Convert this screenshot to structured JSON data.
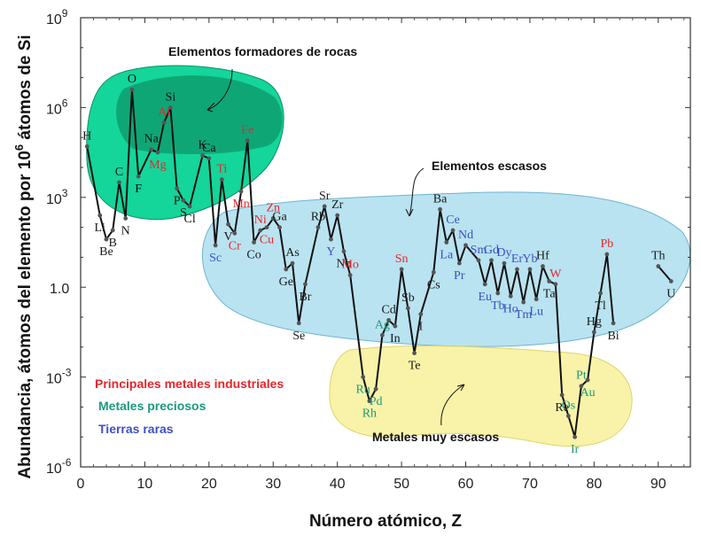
{
  "chart_data": {
    "type": "line",
    "xlabel": "Número atómico, Z",
    "ylabel_main": "Abundancia, átomos del elemento por 10",
    "ylabel_sup": "6",
    "ylabel_tail": " átomos de Si",
    "xlim": [
      0,
      95
    ],
    "ylim_log10": [
      -6,
      9
    ],
    "x_ticks": [
      {
        "value": 0,
        "label": "0"
      },
      {
        "value": 10,
        "label": "10"
      },
      {
        "value": 20,
        "label": "20"
      },
      {
        "value": 30,
        "label": "30"
      },
      {
        "value": 40,
        "label": "40"
      },
      {
        "value": 50,
        "label": "50"
      },
      {
        "value": 60,
        "label": "60"
      },
      {
        "value": 70,
        "label": "70"
      },
      {
        "value": 80,
        "label": "80"
      },
      {
        "value": 90,
        "label": "90"
      }
    ],
    "y_ticks": [
      {
        "exp": 9,
        "base": "10",
        "sup": "9"
      },
      {
        "exp": 6,
        "base": "10",
        "sup": "6"
      },
      {
        "exp": 3,
        "base": "10",
        "sup": "3"
      },
      {
        "exp": 0,
        "base": "10",
        "sup": "0",
        "plain": "1.0"
      },
      {
        "exp": -3,
        "base": "10",
        "sup": "-3"
      },
      {
        "exp": -6,
        "base": "10",
        "sup": "-6"
      }
    ],
    "series": [
      {
        "points": [
          {
            "z": 1,
            "log": 4.7,
            "symbol": "H",
            "group": "rock"
          },
          {
            "z": 3,
            "log": 2.4,
            "symbol": "Li",
            "group": "other"
          },
          {
            "z": 4,
            "log": 1.6,
            "symbol": "Be",
            "group": "other"
          },
          {
            "z": 5,
            "log": 1.9,
            "symbol": "B",
            "group": "other"
          },
          {
            "z": 6,
            "log": 3.5,
            "symbol": "C",
            "group": "rock"
          },
          {
            "z": 7,
            "log": 2.3,
            "symbol": "N",
            "group": "rock"
          },
          {
            "z": 8,
            "log": 6.6,
            "symbol": "O",
            "group": "rock"
          },
          {
            "z": 9,
            "log": 3.7,
            "symbol": "F",
            "group": "rock"
          },
          {
            "z": 11,
            "log": 4.6,
            "symbol": "Na",
            "group": "rock"
          },
          {
            "z": 12,
            "log": 4.5,
            "symbol": "Mg",
            "group": "industrial"
          },
          {
            "z": 13,
            "log": 5.5,
            "symbol": "Al",
            "group": "industrial"
          },
          {
            "z": 14,
            "log": 6.0,
            "symbol": "Si",
            "group": "rock"
          },
          {
            "z": 15,
            "log": 3.3,
            "symbol": "P",
            "group": "rock"
          },
          {
            "z": 16,
            "log": 2.9,
            "symbol": "S",
            "group": "rock"
          },
          {
            "z": 17,
            "log": 2.7,
            "symbol": "Cl",
            "group": "rock"
          },
          {
            "z": 19,
            "log": 4.4,
            "symbol": "K",
            "group": "rock"
          },
          {
            "z": 20,
            "log": 4.3,
            "symbol": "Ca",
            "group": "rock"
          },
          {
            "z": 21,
            "log": 1.4,
            "symbol": "Sc",
            "group": "rare"
          },
          {
            "z": 22,
            "log": 3.6,
            "symbol": "Ti",
            "group": "industrial"
          },
          {
            "z": 23,
            "log": 2.1,
            "symbol": "V",
            "group": "other"
          },
          {
            "z": 24,
            "log": 1.8,
            "symbol": "Cr",
            "group": "industrial"
          },
          {
            "z": 25,
            "log": 3.2,
            "symbol": "Mn",
            "group": "industrial"
          },
          {
            "z": 26,
            "log": 4.9,
            "symbol": "Fe",
            "group": "industrial"
          },
          {
            "z": 27,
            "log": 1.5,
            "symbol": "Co",
            "group": "other"
          },
          {
            "z": 28,
            "log": 1.9,
            "symbol": "Ni",
            "group": "industrial"
          },
          {
            "z": 29,
            "log": 2.0,
            "symbol": "Cu",
            "group": "industrial"
          },
          {
            "z": 30,
            "log": 2.3,
            "symbol": "Zn",
            "group": "industrial"
          },
          {
            "z": 31,
            "log": 2.0,
            "symbol": "Ga",
            "group": "other"
          },
          {
            "z": 32,
            "log": 0.6,
            "symbol": "Ge",
            "group": "other"
          },
          {
            "z": 33,
            "log": 0.8,
            "symbol": "As",
            "group": "other"
          },
          {
            "z": 34,
            "log": -1.2,
            "symbol": "Se",
            "group": "other"
          },
          {
            "z": 35,
            "log": 0.1,
            "symbol": "Br",
            "group": "other"
          },
          {
            "z": 37,
            "log": 2.0,
            "symbol": "Rb",
            "group": "other"
          },
          {
            "z": 38,
            "log": 2.7,
            "symbol": "Sr",
            "group": "other"
          },
          {
            "z": 39,
            "log": 1.6,
            "symbol": "Y",
            "group": "rare"
          },
          {
            "z": 40,
            "log": 2.4,
            "symbol": "Zr",
            "group": "other"
          },
          {
            "z": 41,
            "log": 1.2,
            "symbol": "Nb",
            "group": "other"
          },
          {
            "z": 42,
            "log": 0.4,
            "symbol": "Mo",
            "group": "industrial"
          },
          {
            "z": 44,
            "log": -3.0,
            "symbol": "Ru",
            "group": "precious"
          },
          {
            "z": 45,
            "log": -3.8,
            "symbol": "Rh",
            "group": "precious"
          },
          {
            "z": 46,
            "log": -3.4,
            "symbol": "Pd",
            "group": "precious"
          },
          {
            "z": 47,
            "log": -1.6,
            "symbol": "Ag",
            "group": "precious"
          },
          {
            "z": 48,
            "log": -1.1,
            "symbol": "Cd",
            "group": "other"
          },
          {
            "z": 49,
            "log": -1.3,
            "symbol": "In",
            "group": "other"
          },
          {
            "z": 50,
            "log": 0.6,
            "symbol": "Sn",
            "group": "industrial"
          },
          {
            "z": 51,
            "log": -0.7,
            "symbol": "Sb",
            "group": "other"
          },
          {
            "z": 52,
            "log": -2.2,
            "symbol": "Te",
            "group": "other"
          },
          {
            "z": 53,
            "log": -0.9,
            "symbol": "I",
            "group": "other"
          },
          {
            "z": 55,
            "log": 0.5,
            "symbol": "Cs",
            "group": "other"
          },
          {
            "z": 56,
            "log": 2.6,
            "symbol": "Ba",
            "group": "other"
          },
          {
            "z": 57,
            "log": 1.5,
            "symbol": "La",
            "group": "rare"
          },
          {
            "z": 58,
            "log": 1.9,
            "symbol": "Ce",
            "group": "rare"
          },
          {
            "z": 59,
            "log": 0.8,
            "symbol": "Pr",
            "group": "rare"
          },
          {
            "z": 60,
            "log": 1.4,
            "symbol": "Nd",
            "group": "rare"
          },
          {
            "z": 62,
            "log": 0.9,
            "symbol": "Sm",
            "group": "rare"
          },
          {
            "z": 63,
            "log": 0.1,
            "symbol": "Eu",
            "group": "rare"
          },
          {
            "z": 64,
            "log": 0.9,
            "symbol": "Gd",
            "group": "rare"
          },
          {
            "z": 65,
            "log": -0.2,
            "symbol": "Tb",
            "group": "rare"
          },
          {
            "z": 66,
            "log": 0.8,
            "symbol": "Dy",
            "group": "rare"
          },
          {
            "z": 67,
            "log": -0.3,
            "symbol": "Ho",
            "group": "rare"
          },
          {
            "z": 68,
            "log": 0.6,
            "symbol": "Er",
            "group": "rare"
          },
          {
            "z": 69,
            "log": -0.5,
            "symbol": "Tm",
            "group": "rare"
          },
          {
            "z": 70,
            "log": 0.6,
            "symbol": "Yb",
            "group": "rare"
          },
          {
            "z": 71,
            "log": -0.4,
            "symbol": "Lu",
            "group": "rare"
          },
          {
            "z": 72,
            "log": 0.7,
            "symbol": "Hf",
            "group": "other"
          },
          {
            "z": 73,
            "log": 0.2,
            "symbol": "Ta",
            "group": "other"
          },
          {
            "z": 74,
            "log": 0.1,
            "symbol": "W",
            "group": "industrial"
          },
          {
            "z": 75,
            "log": -3.6,
            "symbol": "Re",
            "group": "other"
          },
          {
            "z": 76,
            "log": -4.3,
            "symbol": "Os",
            "group": "precious"
          },
          {
            "z": 77,
            "log": -5.0,
            "symbol": "Ir",
            "group": "precious"
          },
          {
            "z": 78,
            "log": -3.3,
            "symbol": "Pt",
            "group": "precious"
          },
          {
            "z": 79,
            "log": -3.1,
            "symbol": "Au",
            "group": "precious"
          },
          {
            "z": 80,
            "log": -1.5,
            "symbol": "Hg",
            "group": "other"
          },
          {
            "z": 81,
            "log": -0.2,
            "symbol": "Tl",
            "group": "other"
          },
          {
            "z": 82,
            "log": 1.1,
            "symbol": "Pb",
            "group": "industrial"
          },
          {
            "z": 83,
            "log": -1.2,
            "symbol": "Bi",
            "group": "other"
          }
        ]
      },
      {
        "points": [
          {
            "z": 90,
            "log": 0.7,
            "symbol": "Th",
            "group": "other"
          },
          {
            "z": 92,
            "log": 0.2,
            "symbol": "U",
            "group": "other"
          }
        ]
      }
    ],
    "regions": [
      {
        "label": "Elementos formadores de rocas"
      },
      {
        "label": "Elementos escasos"
      },
      {
        "label": "Metales muy escasos"
      }
    ],
    "legend": [
      {
        "label": "Principales metales industriales",
        "color": "#e8262b"
      },
      {
        "label": "Metales preciosos",
        "color": "#1a9a80"
      },
      {
        "label": "Tierras raras",
        "color": "#3d4fc4"
      }
    ],
    "colors": {
      "industrial": "#e8262b",
      "precious": "#1a9a80",
      "rare": "#3d4fc4",
      "other": "#1a1a1a",
      "rock": "#111111",
      "rock_fill": "#14d59a",
      "rock_fill_dark": "#0e9e70",
      "scarce_fill": "#b9e3f0",
      "very_scarce_fill": "#f8f3a8"
    }
  }
}
